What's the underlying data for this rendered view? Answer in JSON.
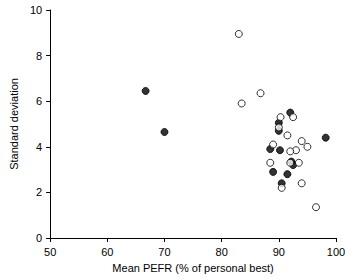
{
  "chart_data": {
    "type": "scatter",
    "xlabel": "Mean PEFR (% of personal best)",
    "ylabel": "Standard deviation",
    "xlim": [
      50,
      100
    ],
    "xticks": [
      50,
      60,
      70,
      80,
      90,
      100
    ],
    "ylim": [
      0,
      10
    ],
    "yticks": [
      0,
      2,
      4,
      6,
      8,
      10
    ],
    "grid": false,
    "series": [
      {
        "color": "#000000",
        "marker": "filled_circle",
        "x": [
          66.7,
          70.0,
          92.0,
          98.2,
          90.0,
          90.0,
          90.2,
          88.5,
          89.0,
          92.2,
          91.5,
          92.5,
          90.5
        ],
        "values": [
          6.45,
          4.65,
          5.5,
          4.4,
          5.05,
          4.7,
          3.85,
          3.9,
          2.9,
          3.35,
          2.8,
          3.2,
          2.4
        ]
      },
      {
        "color": "#000000",
        "marker": "open_circle",
        "x": [
          83.0,
          83.5,
          86.8,
          90.3,
          90.0,
          91.5,
          92.5,
          94.0,
          95.0,
          93.0,
          89.0,
          88.5,
          92.0,
          93.5,
          94.0,
          90.5,
          96.5,
          92.0
        ],
        "values": [
          8.95,
          5.9,
          6.35,
          5.3,
          4.85,
          4.5,
          5.3,
          4.25,
          4.0,
          3.85,
          4.1,
          3.3,
          3.3,
          3.3,
          2.4,
          2.2,
          1.35,
          3.8
        ]
      }
    ]
  }
}
